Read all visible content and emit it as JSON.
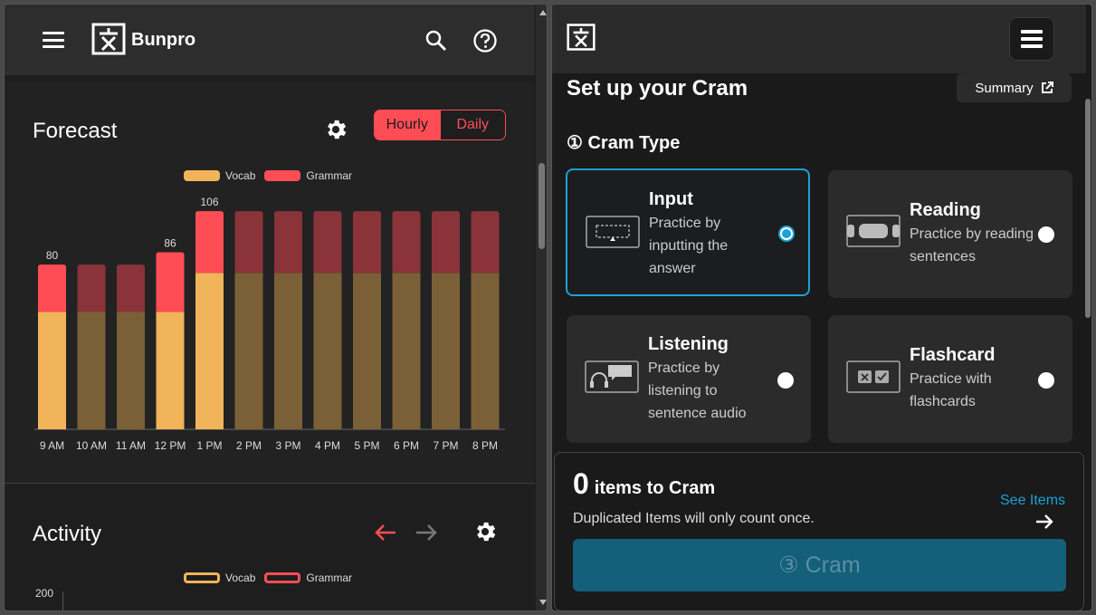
{
  "left": {
    "brand": "Bunpro",
    "forecast": {
      "title": "Forecast",
      "toggle": {
        "hourly": "Hourly",
        "daily": "Daily"
      },
      "legend": {
        "vocab": "Vocab",
        "grammar": "Grammar"
      }
    },
    "activity": {
      "title": "Activity",
      "legend": {
        "vocab": "Vocab",
        "grammar": "Grammar"
      },
      "y_top_label": "200"
    }
  },
  "right": {
    "title": "Set up your Cram",
    "summary_label": "Summary",
    "cram_type_title": "① Cram Type",
    "types": [
      {
        "name": "Input",
        "desc": "Practice by inputting the answer",
        "selected": true
      },
      {
        "name": "Reading",
        "desc": "Practice by reading sentences",
        "selected": false
      },
      {
        "name": "Listening",
        "desc": "Practice by listening to sentence audio",
        "selected": false
      },
      {
        "name": "Flashcard",
        "desc": "Practice with flashcards",
        "selected": false
      }
    ],
    "items_count": "0",
    "items_label": "items to Cram",
    "dup_note": "Duplicated Items will only count once.",
    "see_items": "See Items",
    "cram_button": "③ Cram"
  },
  "colors": {
    "vocab": "#f2b45a",
    "grammar": "#ff4d55",
    "vocab_dim": "#7b6037",
    "grammar_dim": "#8a3339",
    "accent_blue": "#1aa1d6"
  },
  "chart_data": {
    "type": "bar",
    "stacked": true,
    "categories": [
      "9 AM",
      "10 AM",
      "11 AM",
      "12 PM",
      "1 PM",
      "2 PM",
      "3 PM",
      "4 PM",
      "5 PM",
      "6 PM",
      "7 PM",
      "8 PM"
    ],
    "series": [
      {
        "name": "Vocab",
        "values": [
          57,
          57,
          57,
          57,
          76,
          76,
          76,
          76,
          76,
          76,
          76,
          76
        ]
      },
      {
        "name": "Grammar",
        "values": [
          23,
          23,
          23,
          29,
          30,
          30,
          30,
          30,
          30,
          30,
          30,
          30
        ]
      }
    ],
    "totals_labels": {
      "0": "80",
      "3": "86",
      "4": "106"
    },
    "highlighted": [
      0,
      3,
      4
    ],
    "ylim": [
      0,
      110
    ],
    "grid": false,
    "legend": "top-center"
  }
}
